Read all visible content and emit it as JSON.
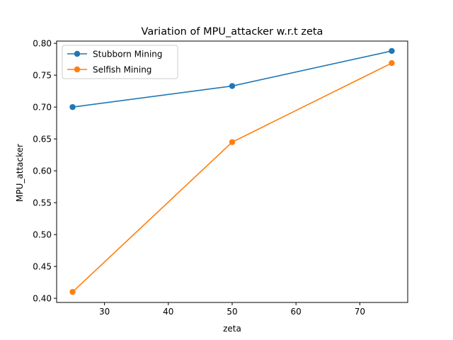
{
  "chart_data": {
    "type": "line",
    "title": "Variation of MPU_attacker w.r.t zeta",
    "xlabel": "zeta",
    "ylabel": "MPU_attacker",
    "x": [
      25,
      50,
      75
    ],
    "xlim": [
      22.5,
      77.5
    ],
    "ylim": [
      0.3935,
      0.8035
    ],
    "xticks": [
      30,
      40,
      50,
      60,
      70
    ],
    "yticks": [
      0.4,
      0.45,
      0.5,
      0.55,
      0.6,
      0.65,
      0.7,
      0.75,
      0.8
    ],
    "xtick_labels": [
      "30",
      "40",
      "50",
      "60",
      "70"
    ],
    "ytick_labels": [
      "0.40",
      "0.45",
      "0.50",
      "0.55",
      "0.60",
      "0.65",
      "0.70",
      "0.75",
      "0.80"
    ],
    "legend_position": "top-left",
    "grid": false,
    "series": [
      {
        "name": "Stubborn Mining",
        "color": "#1f77b4",
        "values": [
          0.7,
          0.733,
          0.788
        ]
      },
      {
        "name": "Selfish Mining",
        "color": "#ff7f0e",
        "values": [
          0.41,
          0.645,
          0.769
        ]
      }
    ]
  }
}
